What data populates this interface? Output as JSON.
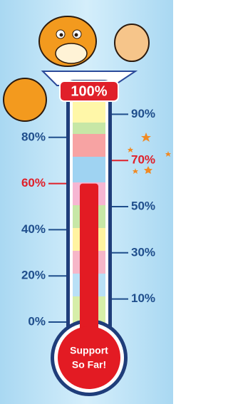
{
  "chart_data": {
    "type": "thermometer",
    "value": 60,
    "color": "#e31b23",
    "ylim": [
      0,
      100
    ],
    "yticks": [
      {
        "value": 0,
        "label": "0%"
      },
      {
        "value": 10,
        "label": "10%"
      },
      {
        "value": 20,
        "label": "20%"
      },
      {
        "value": 30,
        "label": "30%"
      },
      {
        "value": 40,
        "label": "40%"
      },
      {
        "value": 50,
        "label": "50%"
      },
      {
        "value": 60,
        "label": "60%"
      },
      {
        "value": 70,
        "label": "70%"
      },
      {
        "value": 80,
        "label": "80%"
      },
      {
        "value": 90,
        "label": "90%"
      },
      {
        "value": 100,
        "label": "100%"
      }
    ],
    "highlight_ticks": [
      60,
      70
    ],
    "label_color": "#1f4e8c",
    "highlight_color": "#e0202a",
    "bulb_label": [
      "Support",
      "So Far!"
    ]
  }
}
